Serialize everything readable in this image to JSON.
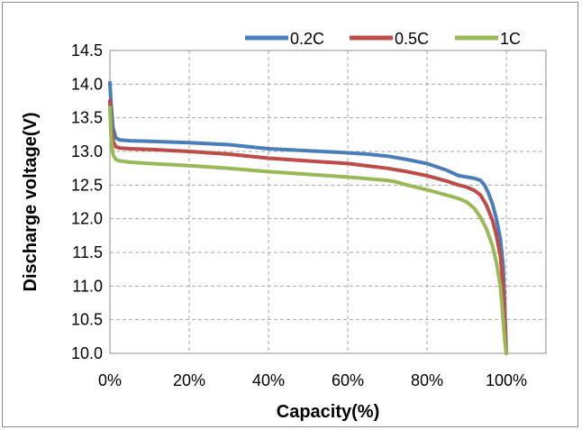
{
  "chart_data": {
    "type": "line",
    "title": "",
    "xlabel": "Capacity(%)",
    "ylabel": "Discharge voltage(V)",
    "xlim": [
      0,
      110
    ],
    "ylim": [
      10.0,
      14.5
    ],
    "x_ticks": [
      0,
      20,
      40,
      60,
      80,
      100
    ],
    "x_tick_labels": [
      "0%",
      "20%",
      "40%",
      "60%",
      "80%",
      "100%"
    ],
    "y_ticks": [
      10.0,
      10.5,
      11.0,
      11.5,
      12.0,
      12.5,
      13.0,
      13.5,
      14.0,
      14.5
    ],
    "y_tick_labels": [
      "10.0",
      "10.5",
      "11.0",
      "11.5",
      "12.0",
      "12.5",
      "13.0",
      "13.5",
      "14.0",
      "14.5"
    ],
    "grid": true,
    "legend_position": "top-right",
    "series": [
      {
        "name": "0.2C",
        "color": "#4a7ebb",
        "x": [
          0,
          0.3,
          0.8,
          1.5,
          2.5,
          5,
          10,
          20,
          30,
          40,
          50,
          60,
          65,
          70,
          75,
          80,
          85,
          88,
          92,
          93.5,
          94.5,
          95.5,
          96.5,
          97.5,
          98.5,
          99.2,
          99.6,
          100
        ],
        "y": [
          14.02,
          13.7,
          13.35,
          13.2,
          13.17,
          13.16,
          13.15,
          13.13,
          13.1,
          13.04,
          13.01,
          12.98,
          12.96,
          12.93,
          12.88,
          12.82,
          12.72,
          12.64,
          12.6,
          12.57,
          12.5,
          12.38,
          12.22,
          12.0,
          11.7,
          11.3,
          10.7,
          10.0
        ]
      },
      {
        "name": "0.5C",
        "color": "#be4b48",
        "x": [
          0,
          0.3,
          0.8,
          1.5,
          2.5,
          5,
          10,
          20,
          30,
          40,
          50,
          60,
          70,
          75,
          80,
          85,
          88,
          90,
          92,
          93.5,
          95,
          96.5,
          97.5,
          98.5,
          99.2,
          99.6,
          100
        ],
        "y": [
          13.75,
          13.4,
          13.15,
          13.07,
          13.05,
          13.04,
          13.03,
          13.0,
          12.96,
          12.9,
          12.86,
          12.82,
          12.75,
          12.7,
          12.64,
          12.56,
          12.5,
          12.47,
          12.42,
          12.35,
          12.2,
          11.98,
          11.75,
          11.45,
          11.0,
          10.5,
          10.0
        ]
      },
      {
        "name": "1C",
        "color": "#98b954",
        "x": [
          0,
          0.3,
          0.8,
          1.5,
          2.5,
          5,
          10,
          20,
          30,
          40,
          50,
          60,
          70,
          72,
          75,
          80,
          85,
          88,
          90,
          92,
          93.5,
          95,
          96.5,
          97.5,
          98.5,
          99.2,
          99.6,
          100
        ],
        "y": [
          13.65,
          13.2,
          12.95,
          12.88,
          12.86,
          12.84,
          12.82,
          12.79,
          12.75,
          12.7,
          12.66,
          12.62,
          12.57,
          12.55,
          12.5,
          12.43,
          12.35,
          12.3,
          12.25,
          12.15,
          12.02,
          11.85,
          11.6,
          11.35,
          11.0,
          10.5,
          10.2,
          10.0
        ]
      }
    ]
  }
}
